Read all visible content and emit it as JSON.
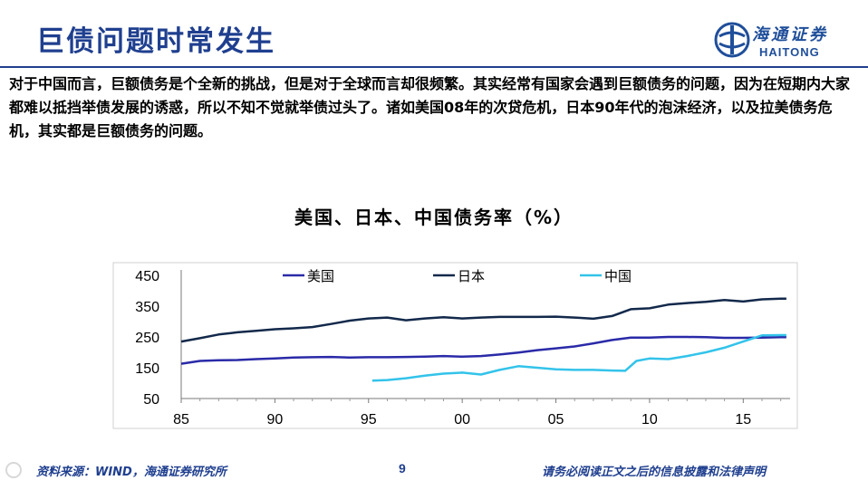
{
  "slide": {
    "title": "巨债问题时常发生",
    "intro": "对于中国而言，巨额债务是个全新的挑战，但是对于全球而言却很频繁。其实经常有国家会遇到巨额债务的问题，因为在短期内大家都难以抵挡举债发展的诱惑，所以不知不觉就举债过头了。诸如美国08年的次贷危机，日本90年代的泡沫经济，以及拉美债务危机，其实都是巨额债务的问题。"
  },
  "logo": {
    "cn": "海通证券",
    "en": "HAITONG"
  },
  "footer": {
    "source": "资料来源：WIND，海通证券研究所",
    "page": "9",
    "disclaimer": "请务必阅读正文之后的信息披露和法律声明"
  },
  "colors": {
    "brand": "#1f3f8f",
    "us": "#2a2aa8",
    "japan": "#13294b",
    "china": "#33c3ea"
  },
  "chart_data": {
    "type": "line",
    "title": "美国、日本、中国债务率（%）",
    "xlabel": "",
    "ylabel": "",
    "ylim": [
      50,
      450
    ],
    "xlim": [
      1985,
      2017.5
    ],
    "yticks": [
      450,
      350,
      250,
      150,
      50
    ],
    "yticks_shown": [
      "450",
      "350",
      "250",
      "150",
      "50"
    ],
    "xticks": [
      {
        "value": 1985,
        "label": "85"
      },
      {
        "value": 1990,
        "label": "90"
      },
      {
        "value": 1995,
        "label": "95"
      },
      {
        "value": 2000,
        "label": "00"
      },
      {
        "value": 2005,
        "label": "05"
      },
      {
        "value": 2010,
        "label": "10"
      },
      {
        "value": 2015,
        "label": "15"
      }
    ],
    "grid": false,
    "legend_position": "top",
    "series": [
      {
        "name": "美国",
        "color": "#2a2aa8",
        "points": [
          [
            1985,
            163
          ],
          [
            1986,
            172
          ],
          [
            1987,
            174
          ],
          [
            1988,
            175
          ],
          [
            1989,
            178
          ],
          [
            1990,
            180
          ],
          [
            1991,
            183
          ],
          [
            1992,
            184
          ],
          [
            1993,
            185
          ],
          [
            1994,
            183
          ],
          [
            1995,
            184
          ],
          [
            1996,
            184
          ],
          [
            1997,
            185
          ],
          [
            1998,
            186
          ],
          [
            1999,
            188
          ],
          [
            2000,
            186
          ],
          [
            2001,
            188
          ],
          [
            2002,
            193
          ],
          [
            2003,
            199
          ],
          [
            2004,
            207
          ],
          [
            2005,
            213
          ],
          [
            2006,
            219
          ],
          [
            2007,
            229
          ],
          [
            2008,
            240
          ],
          [
            2009,
            248
          ],
          [
            2010,
            248
          ],
          [
            2011,
            250
          ],
          [
            2012,
            250
          ],
          [
            2013,
            249
          ],
          [
            2014,
            247
          ],
          [
            2015,
            247
          ],
          [
            2016,
            248
          ],
          [
            2017,
            249
          ],
          [
            2017.3,
            249
          ]
        ]
      },
      {
        "name": "日本",
        "color": "#13294b",
        "points": [
          [
            1985,
            235
          ],
          [
            1986,
            246
          ],
          [
            1987,
            258
          ],
          [
            1988,
            265
          ],
          [
            1989,
            270
          ],
          [
            1990,
            275
          ],
          [
            1991,
            278
          ],
          [
            1992,
            282
          ],
          [
            1993,
            292
          ],
          [
            1994,
            303
          ],
          [
            1995,
            310
          ],
          [
            1996,
            313
          ],
          [
            1997,
            304
          ],
          [
            1998,
            310
          ],
          [
            1999,
            314
          ],
          [
            2000,
            310
          ],
          [
            2001,
            313
          ],
          [
            2002,
            315
          ],
          [
            2003,
            315
          ],
          [
            2004,
            315
          ],
          [
            2005,
            316
          ],
          [
            2006,
            313
          ],
          [
            2007,
            309
          ],
          [
            2008,
            318
          ],
          [
            2009,
            340
          ],
          [
            2010,
            343
          ],
          [
            2011,
            355
          ],
          [
            2012,
            360
          ],
          [
            2013,
            364
          ],
          [
            2014,
            370
          ],
          [
            2015,
            365
          ],
          [
            2016,
            372
          ],
          [
            2017,
            374
          ],
          [
            2017.3,
            374
          ]
        ]
      },
      {
        "name": "中国",
        "color": "#33c3ea",
        "points": [
          [
            1995.2,
            108
          ],
          [
            1996,
            110
          ],
          [
            1997,
            116
          ],
          [
            1998,
            124
          ],
          [
            1999,
            131
          ],
          [
            2000,
            134
          ],
          [
            2001,
            128
          ],
          [
            2002,
            143
          ],
          [
            2003,
            155
          ],
          [
            2004,
            150
          ],
          [
            2005,
            145
          ],
          [
            2006,
            143
          ],
          [
            2007,
            143
          ],
          [
            2008,
            141
          ],
          [
            2008.7,
            140
          ],
          [
            2009.3,
            172
          ],
          [
            2010,
            180
          ],
          [
            2011,
            178
          ],
          [
            2012,
            188
          ],
          [
            2013,
            200
          ],
          [
            2014,
            215
          ],
          [
            2015,
            235
          ],
          [
            2016,
            255
          ],
          [
            2017,
            256
          ],
          [
            2017.3,
            256
          ]
        ]
      }
    ]
  }
}
